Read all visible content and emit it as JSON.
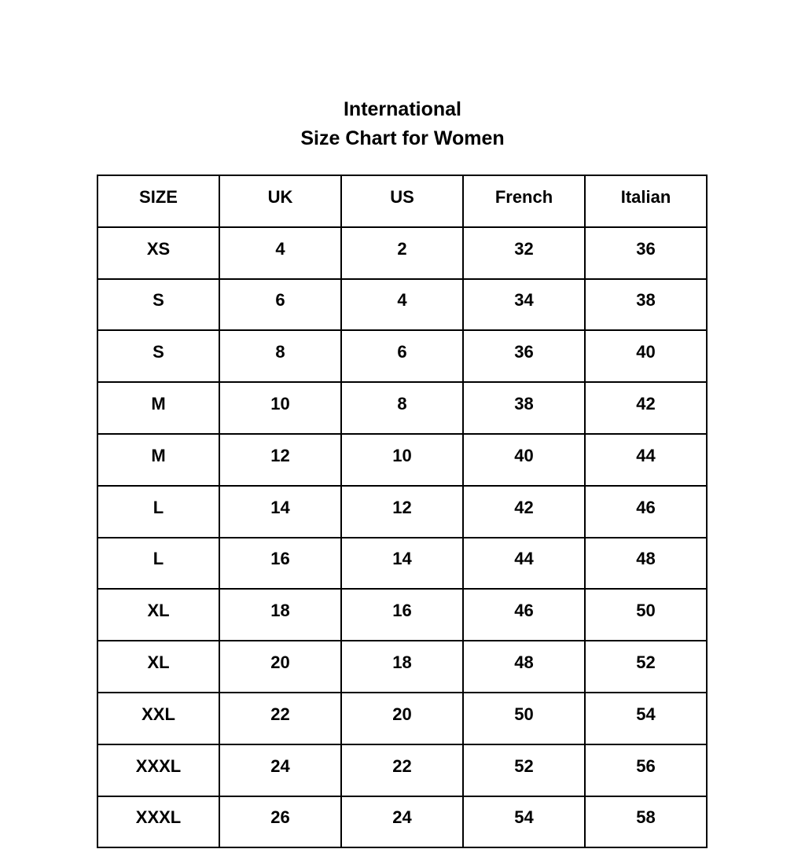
{
  "title": {
    "line1": "International",
    "line2": "Size Chart for Women"
  },
  "table": {
    "headers": [
      "SIZE",
      "UK",
      "US",
      "French",
      "Italian"
    ],
    "rows": [
      [
        "XS",
        "4",
        "2",
        "32",
        "36"
      ],
      [
        "S",
        "6",
        "4",
        "34",
        "38"
      ],
      [
        "S",
        "8",
        "6",
        "36",
        "40"
      ],
      [
        "M",
        "10",
        "8",
        "38",
        "42"
      ],
      [
        "M",
        "12",
        "10",
        "40",
        "44"
      ],
      [
        "L",
        "14",
        "12",
        "42",
        "46"
      ],
      [
        "L",
        "16",
        "14",
        "44",
        "48"
      ],
      [
        "XL",
        "18",
        "16",
        "46",
        "50"
      ],
      [
        "XL",
        "20",
        "18",
        "48",
        "52"
      ],
      [
        "XXL",
        "22",
        "20",
        "50",
        "54"
      ],
      [
        "XXXL",
        "24",
        "22",
        "52",
        "56"
      ],
      [
        "XXXL",
        "26",
        "24",
        "54",
        "58"
      ]
    ]
  },
  "colors": {
    "background": "#ffffff",
    "text": "#000000",
    "border": "#000000"
  },
  "chart_data": {
    "type": "table",
    "title": "International Size Chart for Women",
    "columns": [
      "SIZE",
      "UK",
      "US",
      "French",
      "Italian"
    ],
    "rows": [
      [
        "XS",
        "4",
        "2",
        "32",
        "36"
      ],
      [
        "S",
        "6",
        "4",
        "34",
        "38"
      ],
      [
        "S",
        "8",
        "6",
        "36",
        "40"
      ],
      [
        "M",
        "10",
        "8",
        "38",
        "42"
      ],
      [
        "M",
        "12",
        "10",
        "40",
        "44"
      ],
      [
        "L",
        "14",
        "12",
        "42",
        "46"
      ],
      [
        "L",
        "16",
        "14",
        "44",
        "48"
      ],
      [
        "XL",
        "18",
        "16",
        "46",
        "50"
      ],
      [
        "XL",
        "20",
        "18",
        "48",
        "52"
      ],
      [
        "XXL",
        "22",
        "20",
        "50",
        "54"
      ],
      [
        "XXXL",
        "24",
        "22",
        "52",
        "56"
      ],
      [
        "XXXL",
        "26",
        "24",
        "54",
        "58"
      ]
    ],
    "layout": {
      "grid": true,
      "header_row": true,
      "text_align": "center"
    }
  }
}
